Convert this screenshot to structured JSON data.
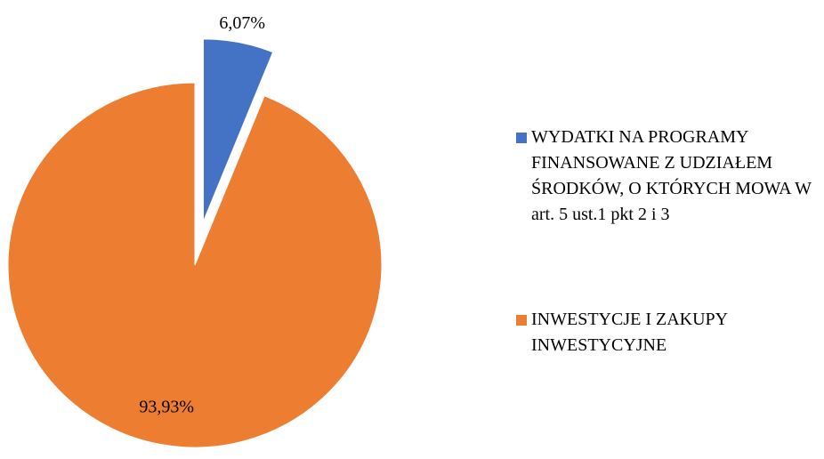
{
  "chart_data": {
    "type": "pie",
    "categories": [
      "WYDATKI NA PROGRAMY FINANSOWANE Z UDZIAŁEM ŚRODKÓW, O KTÓRYCH MOWA W art. 5 ust.1 pkt 2 i 3",
      "INWESTYCJE I ZAKUPY INWESTYCYJNE"
    ],
    "values": [
      6.07,
      93.93
    ],
    "value_labels": [
      "6,07%",
      "93,93%"
    ],
    "colors": [
      "#4472c4",
      "#ed7d31"
    ],
    "legend": "right"
  }
}
